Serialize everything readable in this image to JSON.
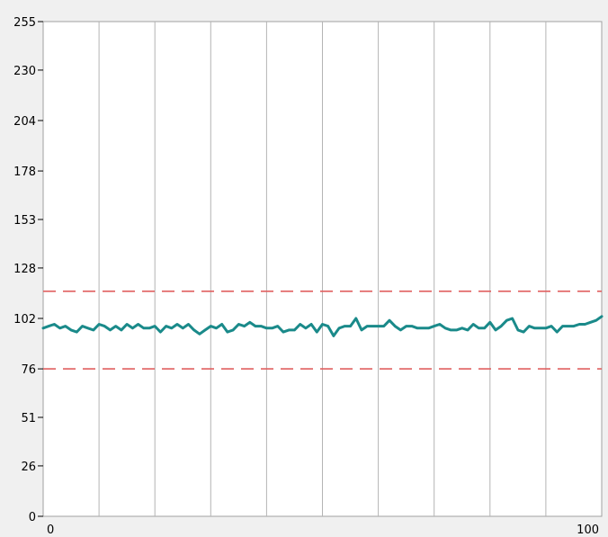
{
  "chart_data": {
    "type": "line",
    "title": "",
    "xlabel": "",
    "ylabel": "",
    "xlim": [
      0,
      100
    ],
    "ylim": [
      0,
      255
    ],
    "x_tick_labels": [
      "0",
      "100"
    ],
    "y_tick_values": [
      0,
      26,
      51,
      76,
      102,
      128,
      153,
      178,
      204,
      230,
      255
    ],
    "y_tick_labels": [
      "0",
      "26",
      "51",
      "76",
      "102",
      "128",
      "153",
      "178",
      "204",
      "230",
      "255"
    ],
    "x_grid_count": 10,
    "grid": true,
    "series": [
      {
        "color": "#1a8a8a",
        "x": [
          0,
          1,
          2,
          3,
          4,
          5,
          6,
          7,
          8,
          9,
          10,
          11,
          12,
          13,
          14,
          15,
          16,
          17,
          18,
          19,
          20,
          21,
          22,
          23,
          24,
          25,
          26,
          27,
          28,
          29,
          30,
          31,
          32,
          33,
          34,
          35,
          36,
          37,
          38,
          39,
          40,
          41,
          42,
          43,
          44,
          45,
          46,
          47,
          48,
          49,
          50,
          51,
          52,
          53,
          54,
          55,
          56,
          57,
          58,
          59,
          60,
          61,
          62,
          63,
          64,
          65,
          66,
          67,
          68,
          69,
          70,
          71,
          72,
          73,
          74,
          75,
          76,
          77,
          78,
          79,
          80,
          81,
          82,
          83,
          84,
          85,
          86,
          87,
          88,
          89,
          90,
          91,
          92,
          93,
          94,
          95,
          96,
          97,
          98,
          99,
          100
        ],
        "values": [
          97,
          98,
          99,
          97,
          98,
          96,
          95,
          98,
          97,
          96,
          99,
          98,
          96,
          98,
          96,
          99,
          97,
          99,
          97,
          97,
          98,
          95,
          98,
          97,
          99,
          97,
          99,
          96,
          94,
          96,
          98,
          97,
          99,
          95,
          96,
          99,
          98,
          100,
          98,
          98,
          97,
          97,
          98,
          95,
          96,
          96,
          99,
          97,
          99,
          95,
          99,
          98,
          93,
          97,
          98,
          98,
          102,
          96,
          98,
          98,
          98,
          98,
          101,
          98,
          96,
          98,
          98,
          97,
          97,
          97,
          98,
          99,
          97,
          96,
          96,
          97,
          96,
          99,
          97,
          97,
          100,
          96,
          98,
          101,
          102,
          96,
          95,
          98,
          97,
          97,
          97,
          98,
          95,
          98,
          98,
          98,
          99,
          99,
          100,
          101,
          103
        ]
      },
      {
        "color": "#e06060",
        "style": "dashed",
        "x": [
          0,
          100
        ],
        "values": [
          116,
          116
        ]
      },
      {
        "color": "#e06060",
        "style": "dashed",
        "x": [
          0,
          100
        ],
        "values": [
          76,
          76
        ]
      }
    ]
  }
}
